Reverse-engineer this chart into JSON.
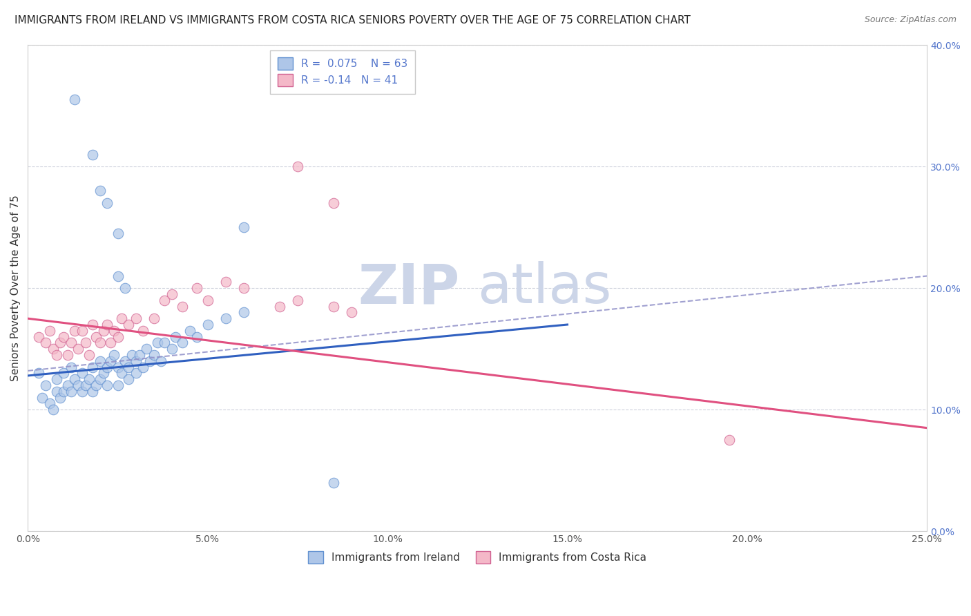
{
  "title": "IMMIGRANTS FROM IRELAND VS IMMIGRANTS FROM COSTA RICA SENIORS POVERTY OVER THE AGE OF 75 CORRELATION CHART",
  "source": "Source: ZipAtlas.com",
  "ylabel": "Seniors Poverty Over the Age of 75",
  "xlim": [
    0.0,
    0.25
  ],
  "ylim": [
    0.0,
    0.4
  ],
  "xticks": [
    0.0,
    0.05,
    0.1,
    0.15,
    0.2,
    0.25
  ],
  "yticks": [
    0.0,
    0.1,
    0.2,
    0.3,
    0.4
  ],
  "right_ytick_labels": [
    "0.0%",
    "10.0%",
    "20.0%",
    "30.0%",
    "40.0%"
  ],
  "xtick_labels": [
    "0.0%",
    "5.0%",
    "10.0%",
    "15.0%",
    "20.0%",
    "25.0%"
  ],
  "ireland_fill_color": "#aec6e8",
  "ireland_edge_color": "#6090d0",
  "costa_rica_fill_color": "#f4b8c8",
  "costa_rica_edge_color": "#d06090",
  "ireland_line_color": "#3060c0",
  "costa_rica_line_color": "#e05080",
  "dashed_line_color": "#9090c8",
  "R_ireland": 0.075,
  "N_ireland": 63,
  "R_costa_rica": -0.14,
  "N_costa_rica": 41,
  "ireland_scatter_x": [
    0.003,
    0.004,
    0.005,
    0.006,
    0.007,
    0.008,
    0.008,
    0.009,
    0.01,
    0.01,
    0.011,
    0.012,
    0.012,
    0.013,
    0.014,
    0.015,
    0.015,
    0.016,
    0.017,
    0.018,
    0.018,
    0.019,
    0.02,
    0.02,
    0.021,
    0.022,
    0.022,
    0.023,
    0.024,
    0.025,
    0.025,
    0.026,
    0.027,
    0.028,
    0.028,
    0.029,
    0.03,
    0.03,
    0.031,
    0.032,
    0.033,
    0.034,
    0.035,
    0.036,
    0.037,
    0.038,
    0.04,
    0.041,
    0.043,
    0.045,
    0.047,
    0.05,
    0.055,
    0.06,
    0.013,
    0.018,
    0.02,
    0.022,
    0.025,
    0.025,
    0.027,
    0.085,
    0.06
  ],
  "ireland_scatter_y": [
    0.13,
    0.11,
    0.12,
    0.105,
    0.1,
    0.115,
    0.125,
    0.11,
    0.115,
    0.13,
    0.12,
    0.135,
    0.115,
    0.125,
    0.12,
    0.13,
    0.115,
    0.12,
    0.125,
    0.135,
    0.115,
    0.12,
    0.14,
    0.125,
    0.13,
    0.135,
    0.12,
    0.14,
    0.145,
    0.135,
    0.12,
    0.13,
    0.14,
    0.135,
    0.125,
    0.145,
    0.14,
    0.13,
    0.145,
    0.135,
    0.15,
    0.14,
    0.145,
    0.155,
    0.14,
    0.155,
    0.15,
    0.16,
    0.155,
    0.165,
    0.16,
    0.17,
    0.175,
    0.18,
    0.355,
    0.31,
    0.28,
    0.27,
    0.245,
    0.21,
    0.2,
    0.04,
    0.25
  ],
  "costa_rica_scatter_x": [
    0.003,
    0.005,
    0.006,
    0.007,
    0.008,
    0.009,
    0.01,
    0.011,
    0.012,
    0.013,
    0.014,
    0.015,
    0.016,
    0.017,
    0.018,
    0.019,
    0.02,
    0.021,
    0.022,
    0.023,
    0.024,
    0.025,
    0.026,
    0.028,
    0.03,
    0.032,
    0.035,
    0.038,
    0.04,
    0.043,
    0.047,
    0.05,
    0.055,
    0.06,
    0.07,
    0.075,
    0.085,
    0.195,
    0.075,
    0.085,
    0.09
  ],
  "costa_rica_scatter_y": [
    0.16,
    0.155,
    0.165,
    0.15,
    0.145,
    0.155,
    0.16,
    0.145,
    0.155,
    0.165,
    0.15,
    0.165,
    0.155,
    0.145,
    0.17,
    0.16,
    0.155,
    0.165,
    0.17,
    0.155,
    0.165,
    0.16,
    0.175,
    0.17,
    0.175,
    0.165,
    0.175,
    0.19,
    0.195,
    0.185,
    0.2,
    0.19,
    0.205,
    0.2,
    0.185,
    0.19,
    0.185,
    0.075,
    0.3,
    0.27,
    0.18
  ],
  "ireland_trend_x": [
    0.0,
    0.15
  ],
  "ireland_trend_y": [
    0.128,
    0.17
  ],
  "costa_rica_trend_x": [
    0.0,
    0.25
  ],
  "costa_rica_trend_y": [
    0.175,
    0.085
  ],
  "dashed_trend_x": [
    0.0,
    0.25
  ],
  "dashed_trend_y": [
    0.132,
    0.21
  ],
  "background_color": "#ffffff",
  "watermark_color": "#ccd5e8",
  "grid_color": "#c8ccd8",
  "title_fontsize": 11,
  "axis_label_fontsize": 11,
  "tick_fontsize": 10,
  "legend_fontsize": 11,
  "source_fontsize": 9,
  "right_tick_color": "#5577cc",
  "scatter_size": 110,
  "scatter_alpha": 0.7
}
